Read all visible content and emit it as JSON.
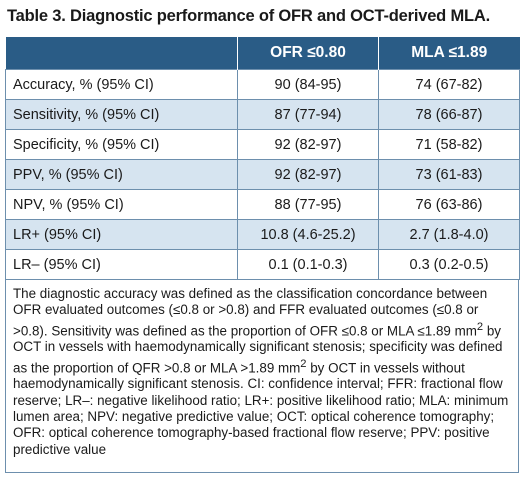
{
  "title": "Table 3. Diagnostic performance of OFR and OCT-derived MLA.",
  "table": {
    "headers": [
      "",
      "OFR ≤0.80",
      "MLA ≤1.89"
    ],
    "rows": [
      {
        "label": "Accuracy, % (95% CI)",
        "ofr": "90 (84-95)",
        "mla": "74 (67-82)"
      },
      {
        "label": "Sensitivity, % (95% CI)",
        "ofr": "87 (77-94)",
        "mla": "78 (66-87)"
      },
      {
        "label": "Specificity, % (95% CI)",
        "ofr": "92 (82-97)",
        "mla": "71 (58-82)"
      },
      {
        "label": "PPV, % (95% CI)",
        "ofr": "92 (82-97)",
        "mla": "73 (61-83)"
      },
      {
        "label": "NPV, % (95% CI)",
        "ofr": "88 (77-95)",
        "mla": "76 (63-86)"
      },
      {
        "label": "LR+ (95% CI)",
        "ofr": "10.8 (4.6-25.2)",
        "mla": "2.7 (1.8-4.0)"
      },
      {
        "label": "LR– (95% CI)",
        "ofr": "0.1 (0.1-0.3)",
        "mla": "0.3 (0.2-0.5)"
      }
    ]
  },
  "footnote": {
    "part1": "The diagnostic accuracy was defined as the classification concordance between OFR evaluated outcomes (≤0.8 or >0.8) and FFR evaluated outcomes (≤0.8 or >0.8). Sensitivity was defined as the proportion of OFR ≤0.8 or MLA ≤1.89 mm",
    "sup1": "2",
    "part2": " by OCT in vessels with haemodynamically significant stenosis; specificity was defined as the proportion of QFR >0.8 or MLA >1.89 mm",
    "sup2": "2",
    "part3": " by OCT in vessels without haemodynamically significant stenosis. CI: confidence interval; FFR: fractional flow reserve; LR–: negative likelihood ratio; LR+: positive likelihood ratio; MLA: minimum lumen area; NPV: negative predictive value; OCT: optical coherence tomography; OFR: optical coherence tomography-based fractional flow reserve; PPV: positive predictive value"
  },
  "colors": {
    "header_bg": "#2a5c86",
    "shade_row": "#d6e4f0",
    "border": "#6d8fad"
  }
}
